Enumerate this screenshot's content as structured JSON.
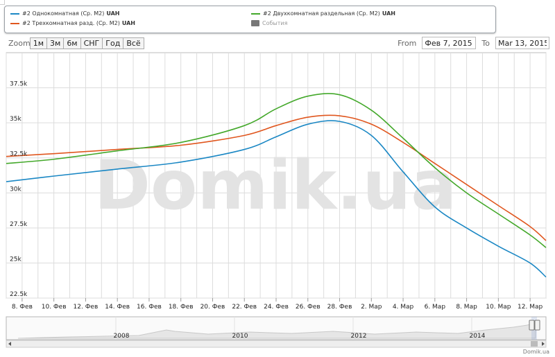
{
  "legend": {
    "items": [
      {
        "label": "#2 Однокомнатная (Ср. М2)",
        "unit": "UAH",
        "color": "#1a87c4"
      },
      {
        "label": "#2 Трехкомнатная разд. (Ср. М2)",
        "unit": "UAH",
        "color": "#e0561e"
      },
      {
        "label": "#2 Двухкомнатная раздельная (Ср. М2)",
        "unit": "UAH",
        "color": "#43a82a"
      },
      {
        "label": "События",
        "unit": "",
        "color": "#777777"
      }
    ]
  },
  "zoom": {
    "label": "Zoom",
    "buttons": [
      "1м",
      "3м",
      "6м",
      "СНГ",
      "Год",
      "Всё"
    ]
  },
  "range": {
    "from_label": "From",
    "from_value": "Фев 7, 2015",
    "to_label": "To",
    "to_value": "Mar 13, 2015"
  },
  "watermark": "Domik.ua",
  "navigator": {
    "years": [
      "2008",
      "2010",
      "2012",
      "2014"
    ]
  },
  "credit": "Domik.ua",
  "chart_data": {
    "type": "line",
    "title": "",
    "xlabel": "",
    "ylabel": "",
    "x_range": [
      "2015-02-07",
      "2015-03-13"
    ],
    "ylim": [
      22500,
      40000
    ],
    "y_ticks": [
      "22.5k",
      "25k",
      "27.5k",
      "30k",
      "32.5k",
      "35k",
      "37.5k"
    ],
    "y_tick_values": [
      22500,
      25000,
      27500,
      30000,
      32500,
      35000,
      37500
    ],
    "x_tick_labels": [
      "8. Фев",
      "10. Фев",
      "12. Фев",
      "14. Фев",
      "16. Фев",
      "18. Фев",
      "20. Фев",
      "22. Фев",
      "24. Фев",
      "26. Фев",
      "28. Фев",
      "2. Мар",
      "4. Мар",
      "6. Мар",
      "8. Мар",
      "10. Мар",
      "12. Мар"
    ],
    "x_tick_dates": [
      "2015-02-08",
      "2015-02-10",
      "2015-02-12",
      "2015-02-14",
      "2015-02-16",
      "2015-02-18",
      "2015-02-20",
      "2015-02-22",
      "2015-02-24",
      "2015-02-26",
      "2015-02-28",
      "2015-03-02",
      "2015-03-04",
      "2015-03-06",
      "2015-03-08",
      "2015-03-10",
      "2015-03-12"
    ],
    "grid": true,
    "series": [
      {
        "name": "#2 Однокомнатная (Ср. М2)",
        "color": "#1a87c4",
        "x": [
          "2015-02-07",
          "2015-02-10",
          "2015-02-14",
          "2015-02-18",
          "2015-02-22",
          "2015-02-24",
          "2015-02-26",
          "2015-02-28",
          "2015-03-02",
          "2015-03-04",
          "2015-03-06",
          "2015-03-08",
          "2015-03-10",
          "2015-03-12",
          "2015-03-13"
        ],
        "y": [
          30800,
          31200,
          31700,
          32200,
          33100,
          34000,
          34900,
          35100,
          34100,
          31500,
          29000,
          27500,
          26200,
          25000,
          24000
        ]
      },
      {
        "name": "#2 Трехкомнатная разд. (Ср. М2)",
        "color": "#e0561e",
        "x": [
          "2015-02-07",
          "2015-02-10",
          "2015-02-14",
          "2015-02-18",
          "2015-02-22",
          "2015-02-24",
          "2015-02-26",
          "2015-02-28",
          "2015-03-02",
          "2015-03-04",
          "2015-03-06",
          "2015-03-08",
          "2015-03-10",
          "2015-03-12",
          "2015-03-13"
        ],
        "y": [
          32600,
          32800,
          33100,
          33400,
          34100,
          34800,
          35400,
          35500,
          34900,
          33600,
          32100,
          30600,
          29100,
          27600,
          26600
        ]
      },
      {
        "name": "#2 Двухкомнатная раздельная (Ср. М2)",
        "color": "#43a82a",
        "x": [
          "2015-02-07",
          "2015-02-10",
          "2015-02-14",
          "2015-02-18",
          "2015-02-22",
          "2015-02-24",
          "2015-02-26",
          "2015-02-28",
          "2015-03-02",
          "2015-03-04",
          "2015-03-06",
          "2015-03-08",
          "2015-03-10",
          "2015-03-12",
          "2015-03-13"
        ],
        "y": [
          32100,
          32400,
          33000,
          33600,
          34800,
          36000,
          36900,
          37000,
          35900,
          33900,
          31800,
          30000,
          28500,
          27000,
          26100
        ]
      }
    ]
  }
}
